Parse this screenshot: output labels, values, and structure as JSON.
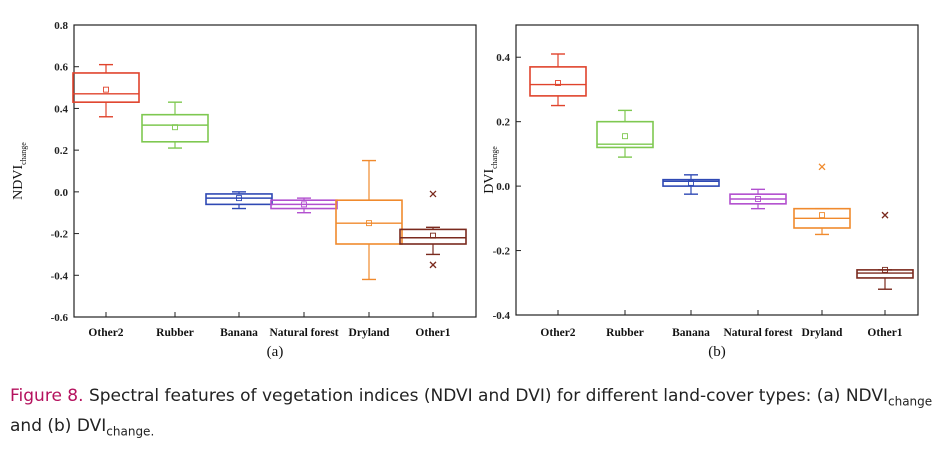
{
  "chart_data": [
    {
      "type": "box",
      "panel_label": "(a)",
      "ylabel_main": "NDVI",
      "ylabel_sub": "change",
      "ylim": [
        -0.6,
        0.8
      ],
      "yticks": [
        "-0.6",
        "-0.4",
        "-0.2",
        "0.0",
        "0.2",
        "0.4",
        "0.6",
        "0.8"
      ],
      "categories": [
        "Other2",
        "Rubber",
        "Banana",
        "Natural forest",
        "Dryland",
        "Other1"
      ],
      "boxes": [
        {
          "color": "#e0432c",
          "whisker_low": 0.36,
          "q1": 0.43,
          "median": 0.47,
          "mean": 0.49,
          "q3": 0.57,
          "whisker_high": 0.61,
          "outliers": []
        },
        {
          "color": "#7ec850",
          "whisker_low": 0.21,
          "q1": 0.24,
          "median": 0.32,
          "mean": 0.31,
          "q3": 0.37,
          "whisker_high": 0.43,
          "outliers": []
        },
        {
          "color": "#2f49b4",
          "whisker_low": -0.08,
          "q1": -0.06,
          "median": -0.03,
          "mean": -0.03,
          "q3": -0.01,
          "whisker_high": 0.0,
          "outliers": []
        },
        {
          "color": "#b24fcf",
          "whisker_low": -0.1,
          "q1": -0.08,
          "median": -0.06,
          "mean": -0.06,
          "q3": -0.04,
          "whisker_high": -0.03,
          "outliers": []
        },
        {
          "color": "#f08a2d",
          "whisker_low": -0.42,
          "q1": -0.25,
          "median": -0.15,
          "mean": -0.15,
          "q3": -0.04,
          "whisker_high": 0.15,
          "outliers": []
        },
        {
          "color": "#7a2a1e",
          "whisker_low": -0.3,
          "q1": -0.25,
          "median": -0.22,
          "mean": -0.21,
          "q3": -0.18,
          "whisker_high": -0.17,
          "outliers": [
            -0.01,
            -0.35
          ]
        }
      ]
    },
    {
      "type": "box",
      "panel_label": "(b)",
      "ylabel_main": "DVI",
      "ylabel_sub": "change",
      "ylim": [
        -0.4,
        0.5
      ],
      "yticks": [
        "-0.4",
        "-0.2",
        "0.0",
        "0.2",
        "0.4"
      ],
      "yticks_values": [
        -0.4,
        -0.2,
        0.0,
        0.2,
        0.4
      ],
      "categories": [
        "Other2",
        "Rubber",
        "Banana",
        "Natural forest",
        "Dryland",
        "Other1"
      ],
      "boxes": [
        {
          "color": "#e0432c",
          "whisker_low": 0.25,
          "q1": 0.28,
          "median": 0.315,
          "mean": 0.32,
          "q3": 0.37,
          "whisker_high": 0.41,
          "outliers": []
        },
        {
          "color": "#7ec850",
          "whisker_low": 0.09,
          "q1": 0.12,
          "median": 0.13,
          "mean": 0.155,
          "q3": 0.2,
          "whisker_high": 0.235,
          "outliers": []
        },
        {
          "color": "#2f49b4",
          "whisker_low": -0.025,
          "q1": 0.0,
          "median": 0.015,
          "mean": 0.01,
          "q3": 0.02,
          "whisker_high": 0.035,
          "outliers": []
        },
        {
          "color": "#b24fcf",
          "whisker_low": -0.07,
          "q1": -0.055,
          "median": -0.04,
          "mean": -0.04,
          "q3": -0.025,
          "whisker_high": -0.01,
          "outliers": []
        },
        {
          "color": "#f08a2d",
          "whisker_low": -0.15,
          "q1": -0.13,
          "median": -0.1,
          "mean": -0.09,
          "q3": -0.07,
          "whisker_high": -0.07,
          "outliers": [
            0.06
          ]
        },
        {
          "color": "#7a2a1e",
          "whisker_low": -0.32,
          "q1": -0.285,
          "median": -0.27,
          "mean": -0.26,
          "q3": -0.26,
          "whisker_high": -0.26,
          "outliers": [
            -0.09
          ]
        }
      ]
    }
  ],
  "caption": {
    "lead": "Figure 8.",
    "text": "Spectral features of vegetation indices (NDVI and DVI) for different land-cover types: (a) NDVI",
    "sub1": "change",
    "mid": " and (b) DVI",
    "sub2": "change.",
    "tail": ""
  }
}
